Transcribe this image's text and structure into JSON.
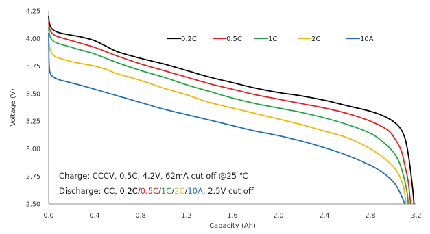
{
  "chart_data": {
    "type": "line",
    "title": "",
    "xlabel": "Capacity (Ah)",
    "ylabel": "Voltage (V)",
    "xlim": [
      0,
      3.2
    ],
    "ylim": [
      2.5,
      4.25
    ],
    "x_ticks": [
      "0.0",
      "0.4",
      "0.8",
      "1.2",
      "1.6",
      "2.0",
      "2.4",
      "2.8",
      "3.2"
    ],
    "y_ticks": [
      "2.50",
      "2.75",
      "3.00",
      "3.25",
      "3.50",
      "3.75",
      "4.00",
      "4.25"
    ],
    "grid": false,
    "legend_position": "top-right",
    "series": [
      {
        "name": "0.2C",
        "color": "#000000",
        "points": [
          [
            0,
            4.2
          ],
          [
            0.005,
            4.15
          ],
          [
            0.02,
            4.1
          ],
          [
            0.05,
            4.07
          ],
          [
            0.1,
            4.05
          ],
          [
            0.2,
            4.03
          ],
          [
            0.3,
            4.01
          ],
          [
            0.4,
            3.98
          ],
          [
            0.5,
            3.93
          ],
          [
            0.6,
            3.88
          ],
          [
            0.8,
            3.82
          ],
          [
            1.0,
            3.77
          ],
          [
            1.2,
            3.71
          ],
          [
            1.4,
            3.65
          ],
          [
            1.6,
            3.6
          ],
          [
            1.8,
            3.55
          ],
          [
            2.0,
            3.51
          ],
          [
            2.2,
            3.48
          ],
          [
            2.4,
            3.44
          ],
          [
            2.6,
            3.39
          ],
          [
            2.8,
            3.34
          ],
          [
            2.95,
            3.28
          ],
          [
            3.05,
            3.2
          ],
          [
            3.1,
            3.1
          ],
          [
            3.13,
            2.95
          ],
          [
            3.15,
            2.8
          ],
          [
            3.17,
            2.62
          ],
          [
            3.18,
            2.5
          ]
        ]
      },
      {
        "name": "0.5C",
        "color": "#e8221f",
        "points": [
          [
            0,
            4.15
          ],
          [
            0.005,
            4.1
          ],
          [
            0.02,
            4.06
          ],
          [
            0.05,
            4.03
          ],
          [
            0.1,
            4.01
          ],
          [
            0.2,
            3.98
          ],
          [
            0.3,
            3.95
          ],
          [
            0.4,
            3.92
          ],
          [
            0.5,
            3.88
          ],
          [
            0.6,
            3.84
          ],
          [
            0.8,
            3.77
          ],
          [
            1.0,
            3.71
          ],
          [
            1.2,
            3.65
          ],
          [
            1.4,
            3.59
          ],
          [
            1.6,
            3.54
          ],
          [
            1.8,
            3.49
          ],
          [
            2.0,
            3.45
          ],
          [
            2.2,
            3.41
          ],
          [
            2.4,
            3.37
          ],
          [
            2.6,
            3.32
          ],
          [
            2.8,
            3.25
          ],
          [
            2.95,
            3.17
          ],
          [
            3.02,
            3.08
          ],
          [
            3.07,
            2.98
          ],
          [
            3.1,
            2.85
          ],
          [
            3.13,
            2.7
          ],
          [
            3.15,
            2.5
          ]
        ]
      },
      {
        "name": "1C",
        "color": "#21a940",
        "points": [
          [
            0,
            4.1
          ],
          [
            0.005,
            4.05
          ],
          [
            0.02,
            4.0
          ],
          [
            0.05,
            3.97
          ],
          [
            0.1,
            3.95
          ],
          [
            0.2,
            3.92
          ],
          [
            0.3,
            3.89
          ],
          [
            0.4,
            3.86
          ],
          [
            0.5,
            3.82
          ],
          [
            0.6,
            3.78
          ],
          [
            0.8,
            3.71
          ],
          [
            1.0,
            3.65
          ],
          [
            1.2,
            3.58
          ],
          [
            1.4,
            3.52
          ],
          [
            1.6,
            3.46
          ],
          [
            1.8,
            3.41
          ],
          [
            2.0,
            3.37
          ],
          [
            2.2,
            3.33
          ],
          [
            2.4,
            3.28
          ],
          [
            2.6,
            3.22
          ],
          [
            2.8,
            3.14
          ],
          [
            2.9,
            3.07
          ],
          [
            3.0,
            2.97
          ],
          [
            3.05,
            2.88
          ],
          [
            3.09,
            2.75
          ],
          [
            3.12,
            2.6
          ],
          [
            3.13,
            2.5
          ]
        ]
      },
      {
        "name": "2C",
        "color": "#f5b800",
        "points": [
          [
            0,
            4.0
          ],
          [
            0.005,
            3.94
          ],
          [
            0.02,
            3.88
          ],
          [
            0.05,
            3.84
          ],
          [
            0.1,
            3.82
          ],
          [
            0.2,
            3.79
          ],
          [
            0.3,
            3.77
          ],
          [
            0.4,
            3.75
          ],
          [
            0.5,
            3.72
          ],
          [
            0.6,
            3.68
          ],
          [
            0.8,
            3.62
          ],
          [
            1.0,
            3.55
          ],
          [
            1.2,
            3.49
          ],
          [
            1.4,
            3.42
          ],
          [
            1.6,
            3.37
          ],
          [
            1.8,
            3.32
          ],
          [
            2.0,
            3.27
          ],
          [
            2.2,
            3.22
          ],
          [
            2.4,
            3.16
          ],
          [
            2.6,
            3.1
          ],
          [
            2.8,
            3.0
          ],
          [
            2.9,
            2.93
          ],
          [
            3.0,
            2.84
          ],
          [
            3.05,
            2.76
          ],
          [
            3.09,
            2.65
          ],
          [
            3.11,
            2.5
          ]
        ]
      },
      {
        "name": "10A",
        "color": "#1f6fc2",
        "points": [
          [
            0,
            4.05
          ],
          [
            0.003,
            3.8
          ],
          [
            0.01,
            3.7
          ],
          [
            0.03,
            3.66
          ],
          [
            0.08,
            3.63
          ],
          [
            0.15,
            3.61
          ],
          [
            0.3,
            3.57
          ],
          [
            0.4,
            3.54
          ],
          [
            0.6,
            3.48
          ],
          [
            0.8,
            3.42
          ],
          [
            1.0,
            3.36
          ],
          [
            1.2,
            3.31
          ],
          [
            1.4,
            3.26
          ],
          [
            1.6,
            3.21
          ],
          [
            1.8,
            3.16
          ],
          [
            2.0,
            3.12
          ],
          [
            2.2,
            3.07
          ],
          [
            2.4,
            3.01
          ],
          [
            2.6,
            2.94
          ],
          [
            2.8,
            2.85
          ],
          [
            2.9,
            2.79
          ],
          [
            3.0,
            2.7
          ],
          [
            3.05,
            2.62
          ],
          [
            3.08,
            2.55
          ],
          [
            3.1,
            2.5
          ]
        ]
      }
    ],
    "annotations": {
      "charge": "Charge: CCCV, 0.5C, 4.2V, 62mA cut off @25 ℃",
      "discharge": {
        "prefix": "Discharge: CC, ",
        "parts": [
          {
            "text": "0.2C",
            "color": "#000000"
          },
          {
            "text": "/",
            "color": "#222222"
          },
          {
            "text": "0.5C",
            "color": "#e8221f"
          },
          {
            "text": "/",
            "color": "#222222"
          },
          {
            "text": "1C",
            "color": "#21a940"
          },
          {
            "text": "/",
            "color": "#222222"
          },
          {
            "text": "2C",
            "color": "#f5b800"
          },
          {
            "text": "/",
            "color": "#222222"
          },
          {
            "text": "10A",
            "color": "#1f6fc2"
          }
        ],
        "suffix": ", 2.5V cut off"
      }
    }
  }
}
